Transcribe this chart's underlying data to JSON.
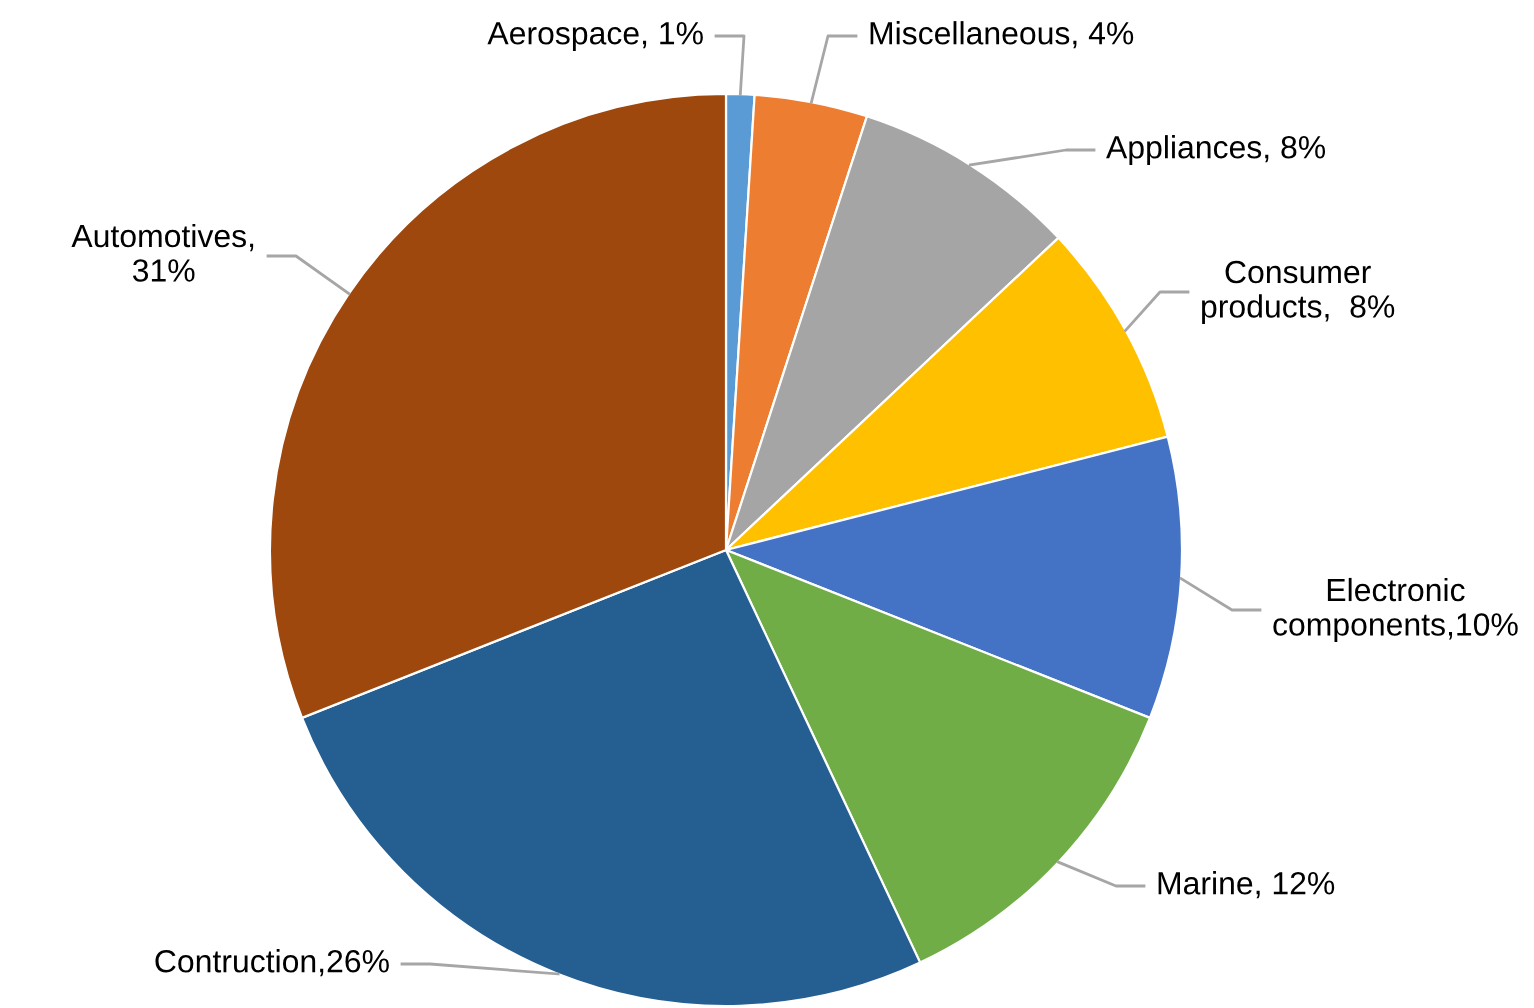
{
  "chart_data": {
    "type": "pie",
    "categories": [
      "Aerospace",
      "Miscellaneous",
      "Appliances",
      "Consumer\nproducts",
      "Electronic\ncomponents",
      "Marine",
      "Contruction",
      "Automotives"
    ],
    "values": [
      1,
      4,
      8,
      8,
      10,
      12,
      26,
      31
    ],
    "value_labels": [
      ", 1%",
      ", 4%",
      ", 8%",
      ",  8%",
      ",10%",
      ", 12%",
      ",26%",
      ",\n31%"
    ],
    "colors": [
      "#5b9bd5",
      "#ed7d31",
      "#a5a5a5",
      "#ffc000",
      "#4472c4",
      "#70ad47",
      "#255e91",
      "#9e480e"
    ]
  }
}
